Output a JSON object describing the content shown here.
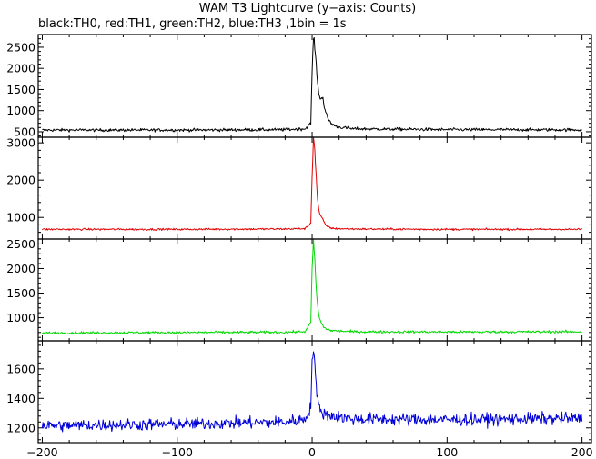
{
  "title": "WAM T3 Lightcurve (y−axis: Counts)",
  "subtitle": "black:TH0, red:TH1, green:TH2, blue:TH3 ,1bin = 1s",
  "chart_data": [
    {
      "type": "line",
      "name": "TH0",
      "color": "#000000",
      "xlim": [
        -203,
        207
      ],
      "ylim": [
        370,
        2800
      ],
      "yticks": [
        500,
        1000,
        1500,
        2000,
        2500
      ],
      "baseline": 540,
      "noise": 35,
      "points": [
        [
          -200,
          540
        ],
        [
          -100,
          540
        ],
        [
          -20,
          550
        ],
        [
          -5,
          570
        ],
        [
          -1,
          700
        ],
        [
          0,
          1900
        ],
        [
          1,
          2750
        ],
        [
          2,
          2500
        ],
        [
          3,
          2100
        ],
        [
          4,
          1700
        ],
        [
          5,
          1400
        ],
        [
          6,
          1250
        ],
        [
          7,
          1350
        ],
        [
          8,
          1300
        ],
        [
          9,
          1100
        ],
        [
          10,
          950
        ],
        [
          12,
          800
        ],
        [
          14,
          700
        ],
        [
          18,
          620
        ],
        [
          30,
          570
        ],
        [
          100,
          550
        ],
        [
          200,
          545
        ]
      ]
    },
    {
      "type": "line",
      "name": "TH1",
      "color": "#e00000",
      "xlim": [
        -203,
        207
      ],
      "ylim": [
        420,
        3150
      ],
      "yticks": [
        1000,
        2000,
        3000
      ],
      "baseline": 680,
      "noise": 25,
      "points": [
        [
          -200,
          680
        ],
        [
          -100,
          680
        ],
        [
          -20,
          690
        ],
        [
          -5,
          700
        ],
        [
          -1,
          850
        ],
        [
          0,
          2100
        ],
        [
          1,
          3150
        ],
        [
          2,
          2800
        ],
        [
          3,
          2100
        ],
        [
          4,
          1500
        ],
        [
          5,
          1200
        ],
        [
          6,
          1050
        ],
        [
          7,
          1000
        ],
        [
          8,
          950
        ],
        [
          9,
          850
        ],
        [
          10,
          800
        ],
        [
          12,
          740
        ],
        [
          16,
          700
        ],
        [
          30,
          690
        ],
        [
          100,
          680
        ],
        [
          200,
          680
        ]
      ]
    },
    {
      "type": "line",
      "name": "TH2",
      "color": "#00d800",
      "xlim": [
        -203,
        207
      ],
      "ylim": [
        530,
        2600
      ],
      "yticks": [
        1000,
        1500,
        2000,
        2500
      ],
      "baseline": 700,
      "noise": 25,
      "points": [
        [
          -200,
          690
        ],
        [
          -100,
          700
        ],
        [
          -20,
          705
        ],
        [
          -5,
          720
        ],
        [
          -1,
          900
        ],
        [
          0,
          2000
        ],
        [
          1,
          2550
        ],
        [
          2,
          2200
        ],
        [
          3,
          1600
        ],
        [
          4,
          1250
        ],
        [
          5,
          1050
        ],
        [
          6,
          950
        ],
        [
          7,
          880
        ],
        [
          8,
          830
        ],
        [
          10,
          780
        ],
        [
          14,
          740
        ],
        [
          30,
          715
        ],
        [
          100,
          710
        ],
        [
          200,
          715
        ]
      ]
    },
    {
      "type": "line",
      "name": "TH3",
      "color": "#0000d8",
      "xlim": [
        -203,
        207
      ],
      "ylim": [
        1100,
        1790
      ],
      "yticks": [
        1200,
        1400,
        1600
      ],
      "baseline": 1230,
      "noise": 40,
      "points": [
        [
          -200,
          1215
        ],
        [
          -100,
          1225
        ],
        [
          -20,
          1240
        ],
        [
          -5,
          1260
        ],
        [
          -1,
          1350
        ],
        [
          0,
          1620
        ],
        [
          1,
          1760
        ],
        [
          2,
          1650
        ],
        [
          3,
          1480
        ],
        [
          4,
          1380
        ],
        [
          6,
          1320
        ],
        [
          10,
          1290
        ],
        [
          30,
          1260
        ],
        [
          100,
          1255
        ],
        [
          200,
          1265
        ]
      ]
    }
  ],
  "x_axis": {
    "ticks": [
      -200,
      -100,
      0,
      100,
      200
    ],
    "tick_labels": [
      "−200",
      "−100",
      "0",
      "100",
      "200"
    ]
  }
}
